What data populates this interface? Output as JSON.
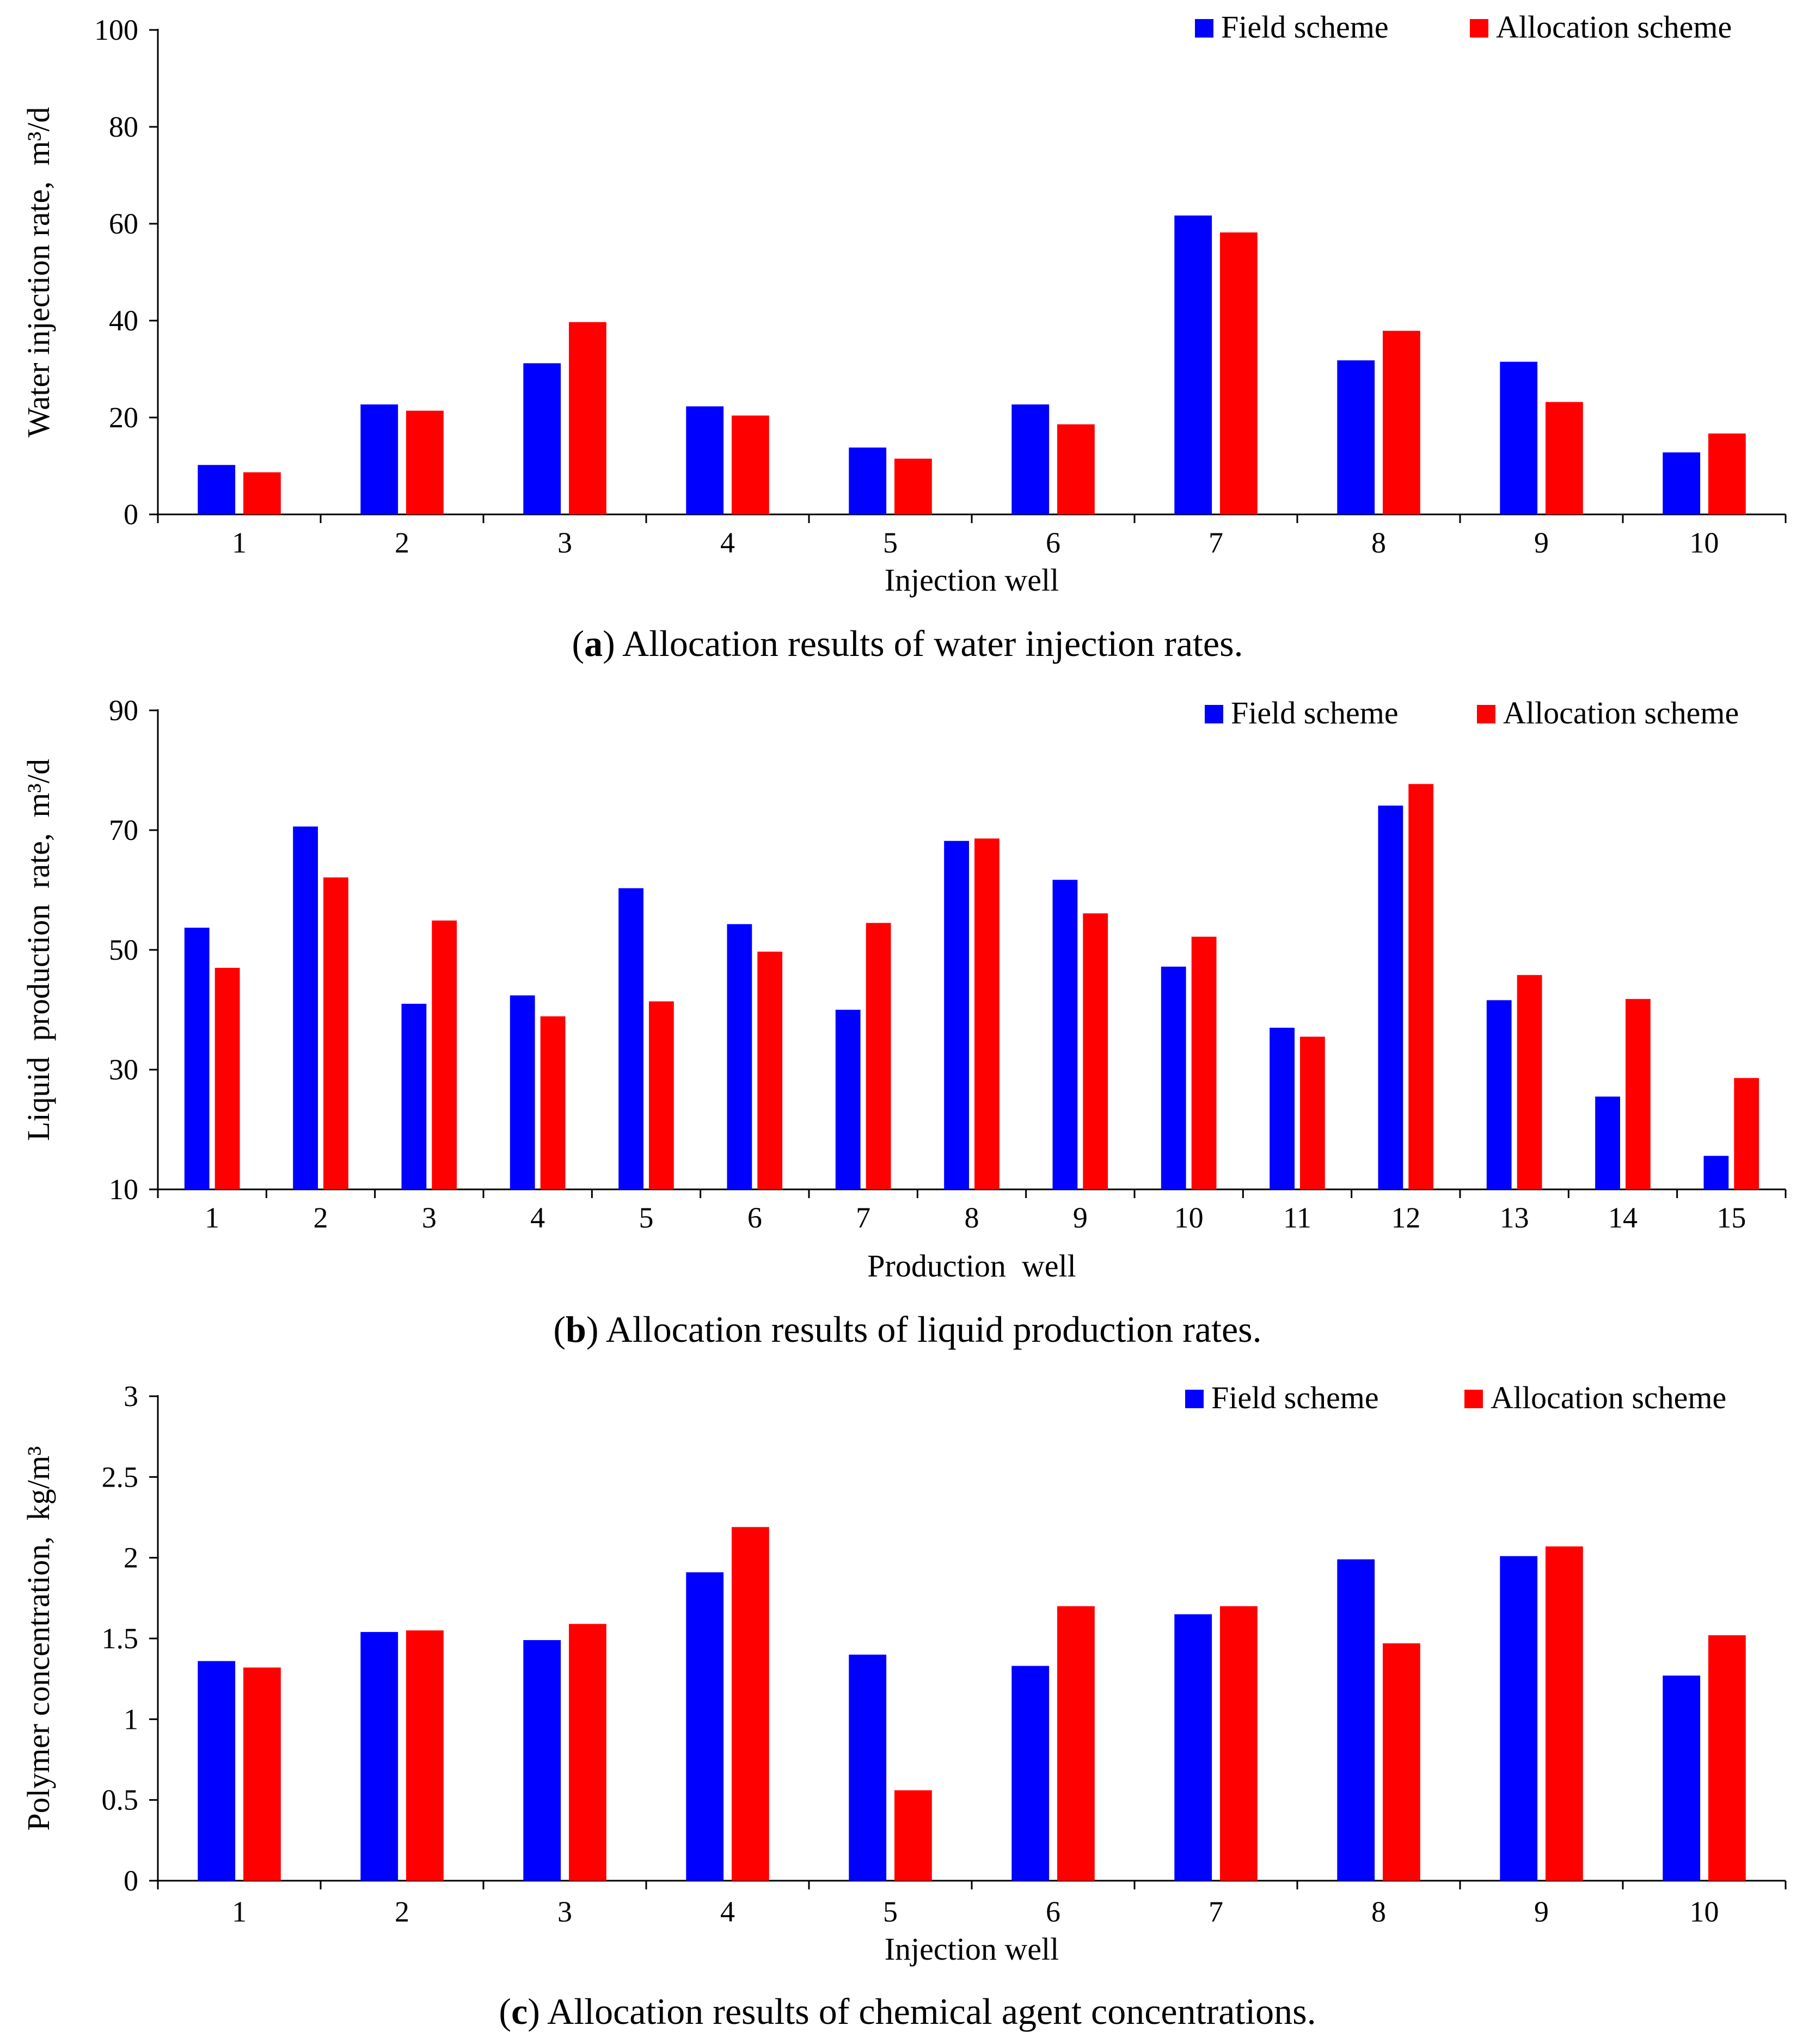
{
  "colors": {
    "field": "#0000ff",
    "allocation": "#ff0000",
    "axis": "#000000"
  },
  "chart_data": [
    {
      "type": "bar",
      "caption_letter": "a",
      "caption_text": " Allocation results of water injection rates.",
      "xlabel": "Injection well",
      "ylabel": "Water injection rate,  m³/d",
      "ylim": [
        0,
        100
      ],
      "yticks": [
        "0",
        "20",
        "40",
        "60",
        "80",
        "100"
      ],
      "categories": [
        "1",
        "2",
        "3",
        "4",
        "5",
        "6",
        "7",
        "8",
        "9",
        "10"
      ],
      "legend_position": "top-right",
      "series": [
        {
          "name": "Field scheme",
          "values": [
            10.2,
            22.7,
            31.2,
            22.3,
            13.8,
            22.7,
            61.7,
            31.8,
            31.5,
            12.8
          ]
        },
        {
          "name": "Allocation scheme",
          "values": [
            8.7,
            21.4,
            39.7,
            20.4,
            11.5,
            18.6,
            58.2,
            37.9,
            23.2,
            16.7
          ]
        }
      ]
    },
    {
      "type": "bar",
      "caption_letter": "b",
      "caption_text": " Allocation results of liquid production rates.",
      "xlabel": "Production  well",
      "ylabel": "Liquid  production  rate,  m³/d",
      "ylim": [
        10,
        90
      ],
      "yticks": [
        "10",
        "30",
        "50",
        "70",
        "90"
      ],
      "categories": [
        "1",
        "2",
        "3",
        "4",
        "5",
        "6",
        "7",
        "8",
        "9",
        "10",
        "11",
        "12",
        "13",
        "14",
        "15"
      ],
      "legend_position": "top-right",
      "series": [
        {
          "name": "Field scheme",
          "values": [
            53.7,
            70.6,
            41.0,
            42.4,
            60.3,
            54.3,
            40.0,
            68.2,
            61.7,
            47.2,
            37.0,
            74.1,
            41.6,
            25.5,
            15.6
          ]
        },
        {
          "name": "Allocation scheme",
          "values": [
            47.0,
            62.1,
            54.9,
            38.9,
            41.4,
            49.7,
            54.5,
            68.6,
            56.1,
            52.2,
            35.5,
            77.7,
            45.8,
            41.8,
            28.6
          ]
        }
      ]
    },
    {
      "type": "bar",
      "caption_letter": "c",
      "caption_text": " Allocation results of chemical agent concentrations.",
      "xlabel": "Injection well",
      "ylabel": "Polymer concentration,  kg/m³",
      "ylim": [
        0,
        3
      ],
      "yticks": [
        "0",
        "0.5",
        "1",
        "1.5",
        "2",
        "2.5",
        "3"
      ],
      "categories": [
        "1",
        "2",
        "3",
        "4",
        "5",
        "6",
        "7",
        "8",
        "9",
        "10"
      ],
      "legend_position": "top-right",
      "series": [
        {
          "name": "Field scheme",
          "values": [
            1.36,
            1.54,
            1.49,
            1.91,
            1.4,
            1.33,
            1.65,
            1.99,
            2.01,
            1.27
          ]
        },
        {
          "name": "Allocation scheme",
          "values": [
            1.32,
            1.55,
            1.59,
            2.19,
            0.56,
            1.7,
            1.7,
            1.47,
            2.07,
            1.52
          ]
        }
      ]
    }
  ]
}
